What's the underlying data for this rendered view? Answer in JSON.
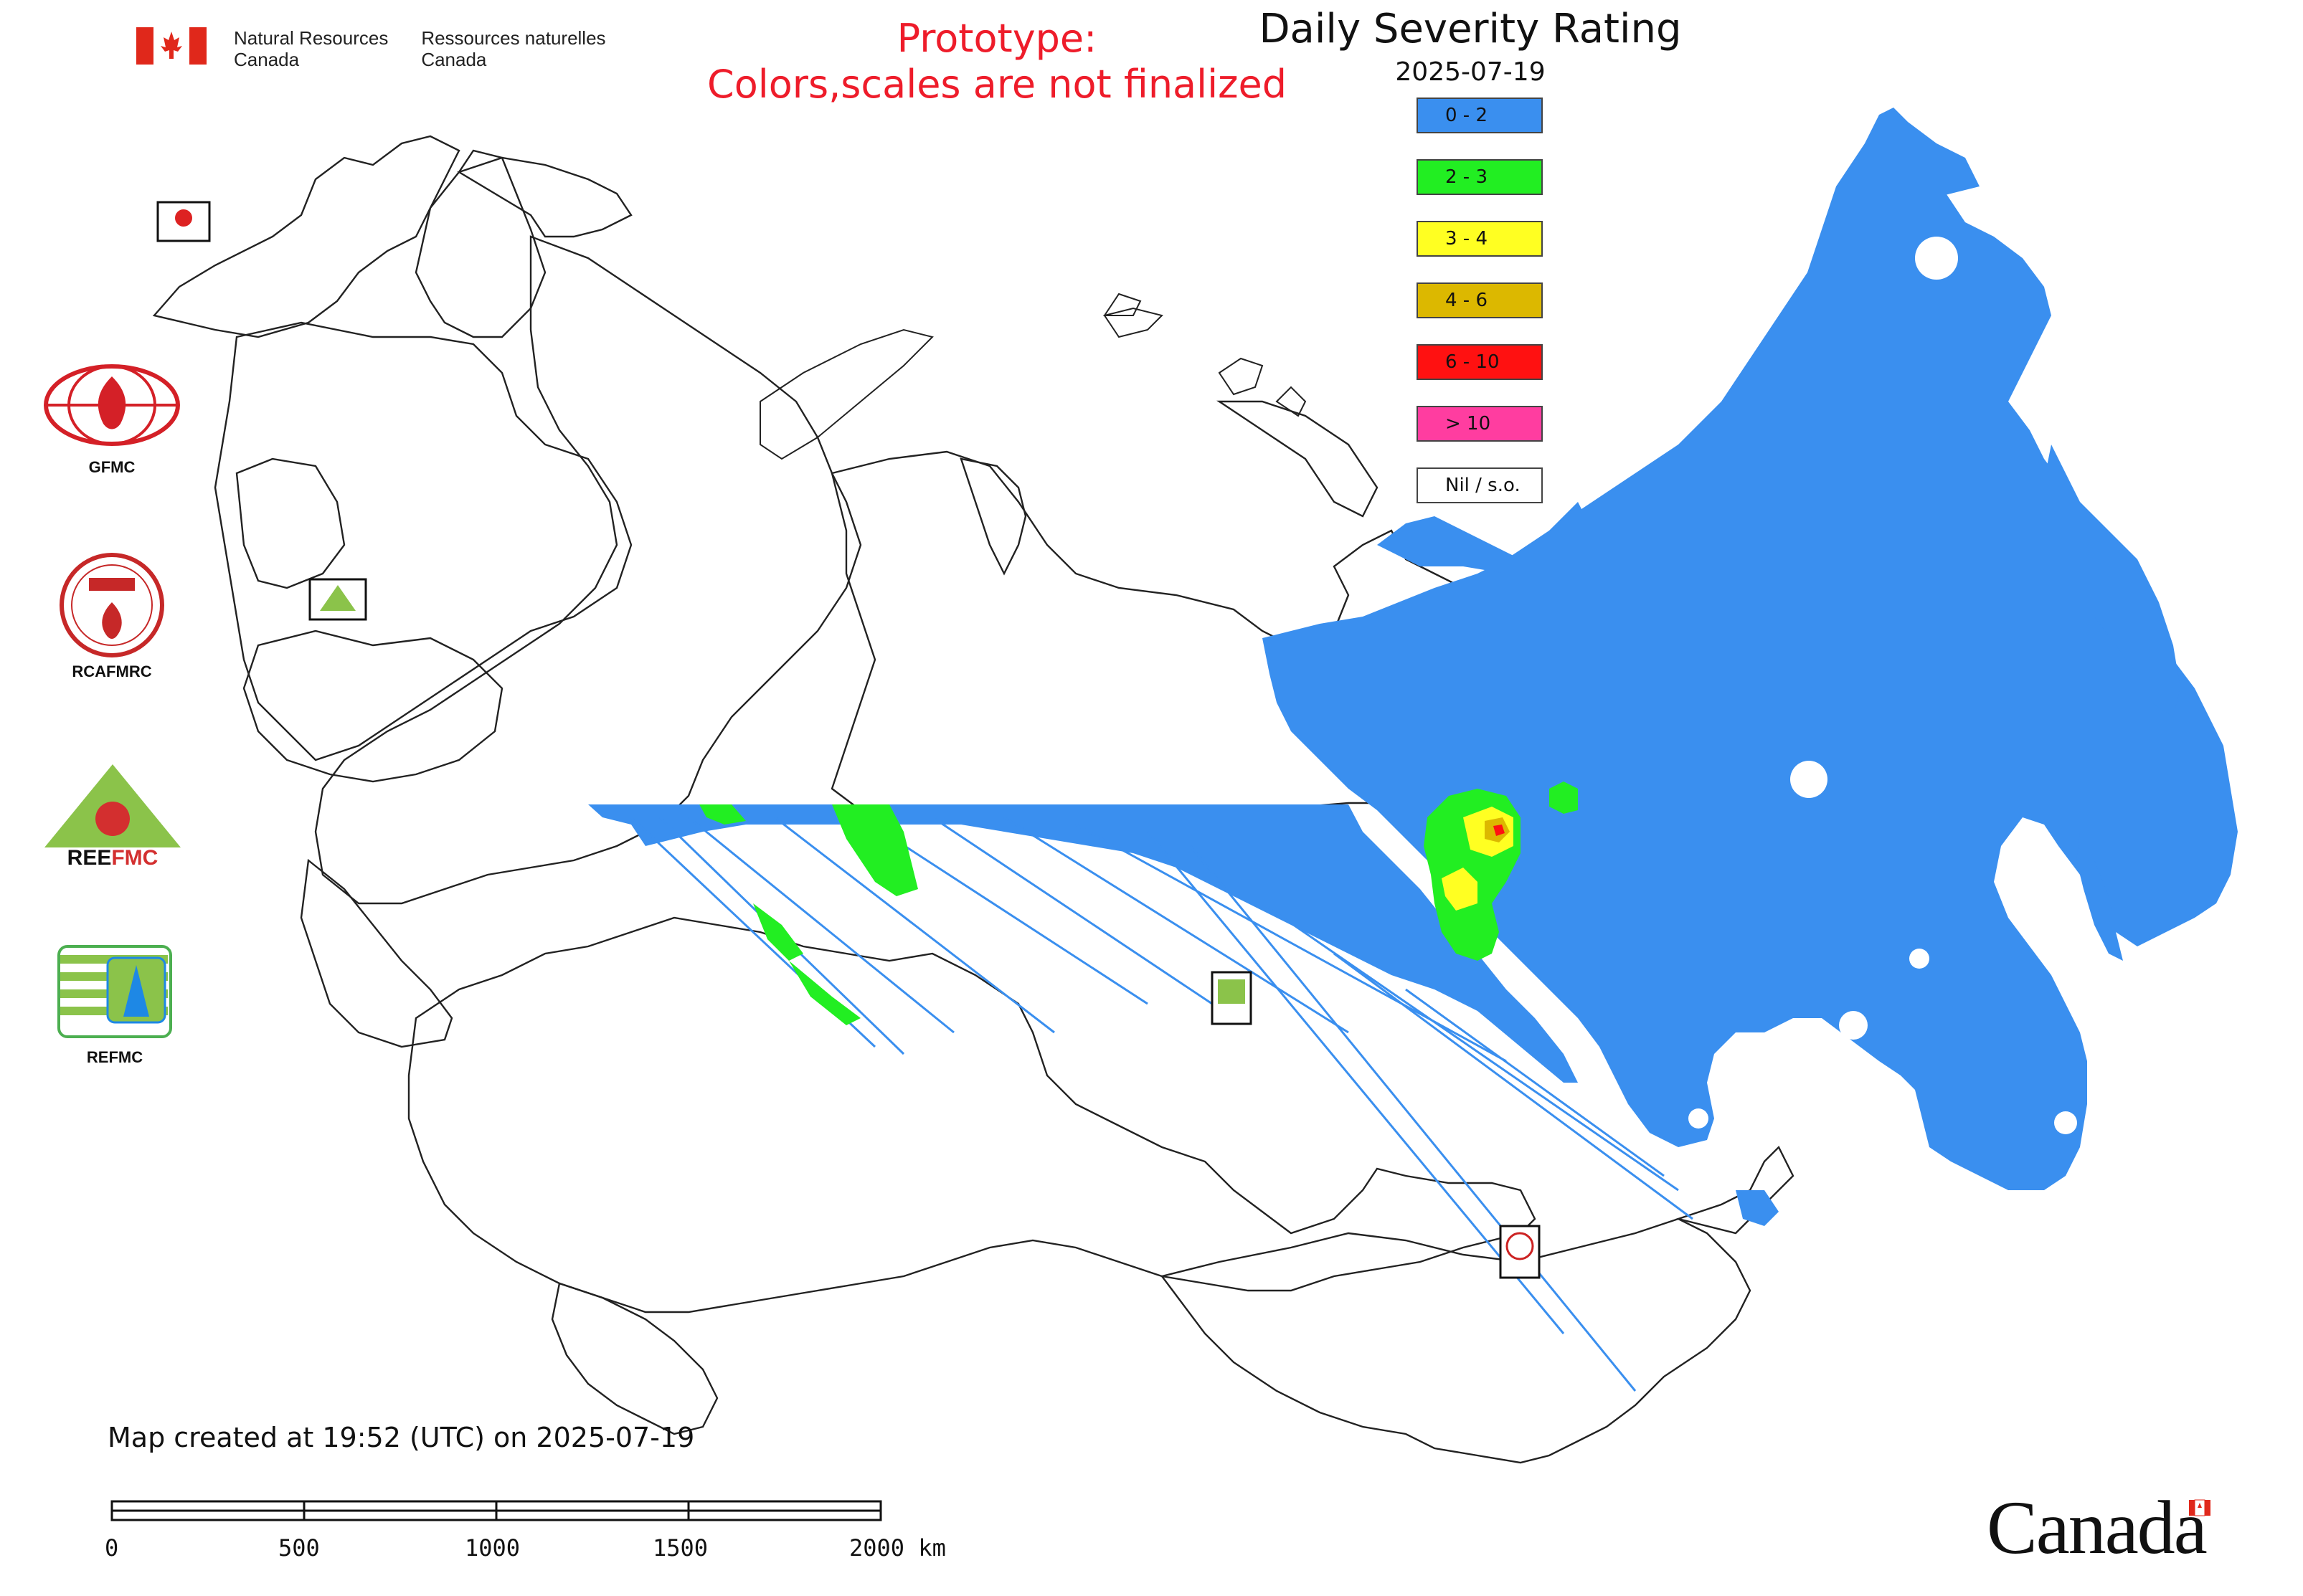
{
  "header": {
    "agency_en_line1": "Natural Resources",
    "agency_en_line2": "Canada",
    "agency_fr_line1": "Ressources naturelles",
    "agency_fr_line2": "Canada",
    "prototype_line1": "Prototype:",
    "prototype_line2": "Colors,scales are not finalized"
  },
  "map": {
    "title": "Daily Severity Rating",
    "date": "2025-07-19",
    "created_text": "Map created at 19:52 (UTC) on 2025-07-19"
  },
  "legend": [
    {
      "label": "0 - 2",
      "color": "#3a8fef"
    },
    {
      "label": "2 - 3",
      "color": "#22ee22"
    },
    {
      "label": "3 - 4",
      "color": "#ffff22"
    },
    {
      "label": "4 - 6",
      "color": "#dcb800"
    },
    {
      "label": "6 - 10",
      "color": "#ff1111"
    },
    {
      "label": "> 10",
      "color": "#ff3da0"
    },
    {
      "label": "Nil / s.o.",
      "color": "#ffffff"
    }
  ],
  "side_logos": {
    "gfmc": "GFMC",
    "rcafmrc": "RCAFMRC",
    "reefmc": "REEFMC",
    "refmc": "REFMC"
  },
  "scale_bar": {
    "labels": [
      "0",
      "500",
      "1000",
      "1500",
      "2000 km"
    ]
  },
  "footer": {
    "wordmark": "Canada"
  },
  "icons": {
    "flag": "canada-flag-icon",
    "gfmc": "gfmc-logo-icon",
    "rcafmrc": "rcafmrc-logo-icon",
    "reefmc": "reefmc-logo-icon",
    "refmc": "refmc-logo-icon"
  }
}
